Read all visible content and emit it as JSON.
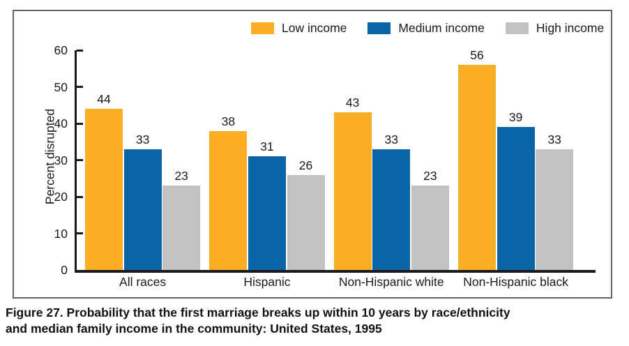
{
  "figure": {
    "caption_line1": "Figure 27. Probability that the first marriage breaks up within 10 years by race/ethnicity",
    "caption_line2": "and median family income in the community: United States, 1995"
  },
  "chart_data": {
    "type": "bar",
    "title": "",
    "xlabel": "",
    "ylabel": "Percent disrupted",
    "ylim": [
      0,
      60
    ],
    "yticks": [
      0,
      10,
      20,
      30,
      40,
      50,
      60
    ],
    "grid": false,
    "legend_position": "top",
    "categories": [
      "All races",
      "Hispanic",
      "Non-Hispanic white",
      "Non-Hispanic black"
    ],
    "series": [
      {
        "name": "Low income",
        "color": "#FBAD23",
        "values": [
          44,
          38,
          43,
          56
        ]
      },
      {
        "name": "Medium income",
        "color": "#0A64A8",
        "values": [
          33,
          31,
          33,
          39
        ]
      },
      {
        "name": "High income",
        "color": "#C2C2C2",
        "values": [
          23,
          26,
          23,
          33
        ]
      }
    ],
    "colors": {
      "axis": "#1a1a1a",
      "frame_border": "#636363",
      "value_label": "#1a1a1a"
    }
  }
}
